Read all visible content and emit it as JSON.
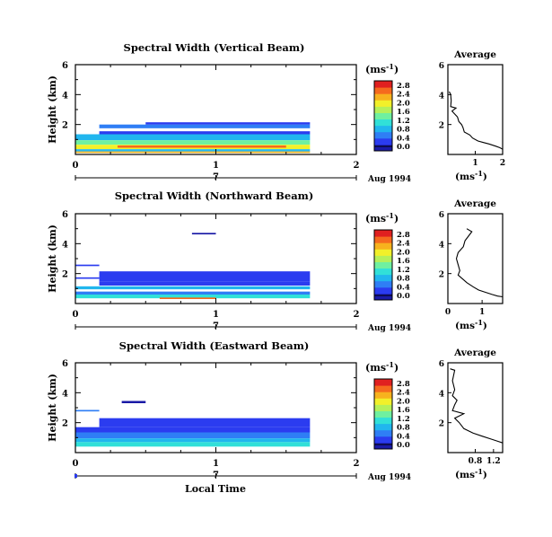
{
  "figure": {
    "xlabel": "Local Time",
    "date_label": "Aug 1994",
    "day_label": "7",
    "ylabel": "Height (km)",
    "cbar_unit": "(ms",
    "cbar_unit_exp": "-1",
    "cbar_unit_close": ")",
    "avg_title": "Average",
    "avg_xlabel": "(ms",
    "avg_xlabel_exp": "-1",
    "avg_xlabel_close": ")"
  },
  "colormap": [
    "#1a1aa6",
    "#2b3cf0",
    "#2f7ef5",
    "#21b6ee",
    "#31e0d8",
    "#6ff0a0",
    "#b5f05a",
    "#f2f02a",
    "#f7b21e",
    "#f56a1e",
    "#e02020"
  ],
  "chart_data": [
    {
      "type": "heatmap",
      "title": "Spectral Width (Vertical Beam)",
      "xlim": [
        0,
        2
      ],
      "xticks": [
        "0",
        "1",
        "2"
      ],
      "ylim": [
        0,
        6
      ],
      "yticks": [
        "2",
        "4",
        "6"
      ],
      "colorbar_ticks": [
        "0.0",
        "0.4",
        "0.8",
        "1.2",
        "1.6",
        "2.0",
        "2.4",
        "2.8"
      ],
      "colorbar_range": [
        0,
        3.0
      ],
      "cells": [
        {
          "x0": 0.17,
          "x1": 1.67,
          "y0": 1.75,
          "y1": 2.0,
          "v": 0.6
        },
        {
          "x0": 0.5,
          "x1": 1.67,
          "y0": 2.0,
          "y1": 2.15,
          "v": 0.5
        },
        {
          "x0": 0.0,
          "x1": 0.17,
          "y0": 1.2,
          "y1": 1.3,
          "v": 0.7
        },
        {
          "x0": 0.17,
          "x1": 1.67,
          "y0": 1.35,
          "y1": 1.55,
          "v": 0.5
        },
        {
          "x0": 0.0,
          "x1": 1.67,
          "y0": 0.95,
          "y1": 1.35,
          "v": 0.9
        },
        {
          "x0": 0.0,
          "x1": 1.67,
          "y0": 0.65,
          "y1": 0.95,
          "v": 1.4
        },
        {
          "x0": 0.0,
          "x1": 1.67,
          "y0": 0.35,
          "y1": 0.65,
          "v": 2.0
        },
        {
          "x0": 0.3,
          "x1": 1.5,
          "y0": 0.45,
          "y1": 0.6,
          "v": 2.6
        },
        {
          "x0": 0.0,
          "x1": 1.67,
          "y0": 0.2,
          "y1": 0.35,
          "v": 1.0
        },
        {
          "x0": 0.0,
          "x1": 1.67,
          "y0": 0.1,
          "y1": 0.2,
          "v": 2.3
        }
      ],
      "average": {
        "xlim": [
          0,
          2
        ],
        "xticks": [
          "1",
          "2"
        ],
        "ylim": [
          0,
          6
        ],
        "yticks": [
          "2",
          "4",
          "6"
        ],
        "profile": [
          [
            0.05,
            4.2
          ],
          [
            0.1,
            4.0
          ],
          [
            0.12,
            3.6
          ],
          [
            0.1,
            3.2
          ],
          [
            0.3,
            3.1
          ],
          [
            0.15,
            2.9
          ],
          [
            0.35,
            2.5
          ],
          [
            0.4,
            2.2
          ],
          [
            0.5,
            2.0
          ],
          [
            0.55,
            1.8
          ],
          [
            0.6,
            1.5
          ],
          [
            0.8,
            1.3
          ],
          [
            0.9,
            1.1
          ],
          [
            1.1,
            0.9
          ],
          [
            1.3,
            0.8
          ],
          [
            1.5,
            0.7
          ],
          [
            1.75,
            0.55
          ],
          [
            1.9,
            0.45
          ],
          [
            2.0,
            0.35
          ]
        ]
      }
    },
    {
      "type": "heatmap",
      "title": "Spectral Width (Northward Beam)",
      "xlim": [
        0,
        2
      ],
      "xticks": [
        "0",
        "1",
        "2"
      ],
      "ylim": [
        0,
        6
      ],
      "yticks": [
        "2",
        "4",
        "6"
      ],
      "colorbar_ticks": [
        "0.0",
        "0.4",
        "0.8",
        "1.2",
        "1.6",
        "2.0",
        "2.4",
        "2.8"
      ],
      "colorbar_range": [
        0,
        3.0
      ],
      "cells": [
        {
          "x0": 0.83,
          "x1": 1.0,
          "y0": 4.62,
          "y1": 4.72,
          "v": 0.2
        },
        {
          "x0": 0.0,
          "x1": 0.17,
          "y0": 2.5,
          "y1": 2.6,
          "v": 0.4
        },
        {
          "x0": 0.0,
          "x1": 0.17,
          "y0": 1.65,
          "y1": 1.75,
          "v": 0.3
        },
        {
          "x0": 0.17,
          "x1": 1.67,
          "y0": 1.95,
          "y1": 2.15,
          "v": 0.3
        },
        {
          "x0": 0.17,
          "x1": 1.67,
          "y0": 1.45,
          "y1": 1.95,
          "v": 0.4
        },
        {
          "x0": 0.17,
          "x1": 1.67,
          "y0": 1.2,
          "y1": 1.45,
          "v": 0.5
        },
        {
          "x0": 0.0,
          "x1": 1.67,
          "y0": 0.95,
          "y1": 1.15,
          "v": 0.9
        },
        {
          "x0": 0.0,
          "x1": 1.67,
          "y0": 0.6,
          "y1": 0.8,
          "v": 0.7
        },
        {
          "x0": 0.0,
          "x1": 1.67,
          "y0": 0.35,
          "y1": 0.6,
          "v": 1.2
        },
        {
          "x0": 0.6,
          "x1": 1.0,
          "y0": 0.3,
          "y1": 0.4,
          "v": 2.6
        }
      ],
      "average": {
        "xlim": [
          0,
          1.6
        ],
        "xticks": [
          "0",
          "1"
        ],
        "ylim": [
          0,
          6
        ],
        "yticks": [
          "2",
          "4",
          "6"
        ],
        "profile": [
          [
            0.55,
            5.0
          ],
          [
            0.7,
            4.8
          ],
          [
            0.6,
            4.5
          ],
          [
            0.5,
            4.2
          ],
          [
            0.45,
            3.8
          ],
          [
            0.3,
            3.4
          ],
          [
            0.25,
            3.0
          ],
          [
            0.3,
            2.6
          ],
          [
            0.35,
            2.2
          ],
          [
            0.3,
            1.9
          ],
          [
            0.45,
            1.6
          ],
          [
            0.55,
            1.4
          ],
          [
            0.75,
            1.1
          ],
          [
            0.9,
            0.9
          ],
          [
            1.1,
            0.75
          ],
          [
            1.3,
            0.6
          ],
          [
            1.45,
            0.5
          ],
          [
            1.6,
            0.45
          ]
        ]
      }
    },
    {
      "type": "heatmap",
      "title": "Spectral Width (Eastward Beam)",
      "xlim": [
        0,
        2
      ],
      "xticks": [
        "0",
        "1",
        "2"
      ],
      "ylim": [
        0,
        6
      ],
      "yticks": [
        "2",
        "4",
        "6"
      ],
      "colorbar_ticks": [
        "0.0",
        "0.4",
        "0.8",
        "1.2",
        "1.6",
        "2.0",
        "2.4",
        "2.8"
      ],
      "colorbar_range": [
        0,
        3.0
      ],
      "cells": [
        {
          "x0": 0.33,
          "x1": 0.5,
          "y0": 3.3,
          "y1": 3.45,
          "v": 0.1
        },
        {
          "x0": 0.0,
          "x1": 0.17,
          "y0": 2.75,
          "y1": 2.85,
          "v": 0.8
        },
        {
          "x0": 0.17,
          "x1": 1.67,
          "y0": 2.1,
          "y1": 2.3,
          "v": 0.3
        },
        {
          "x0": 0.17,
          "x1": 1.67,
          "y0": 1.7,
          "y1": 2.1,
          "v": 0.4
        },
        {
          "x0": 0.0,
          "x1": 1.67,
          "y0": 1.35,
          "y1": 1.7,
          "v": 0.5
        },
        {
          "x0": 0.0,
          "x1": 1.67,
          "y0": 0.95,
          "y1": 1.35,
          "v": 0.7
        },
        {
          "x0": 0.0,
          "x1": 1.67,
          "y0": 0.7,
          "y1": 0.95,
          "v": 0.9
        },
        {
          "x0": 0.0,
          "x1": 1.67,
          "y0": 0.4,
          "y1": 0.7,
          "v": 1.3
        }
      ],
      "average": {
        "xlim": [
          0.2,
          1.4
        ],
        "xticks": [
          "0.8",
          "1.2"
        ],
        "ylim": [
          0,
          6
        ],
        "yticks": [
          "2",
          "4",
          "6"
        ],
        "profile": [
          [
            0.25,
            5.6
          ],
          [
            0.35,
            5.5
          ],
          [
            0.3,
            4.8
          ],
          [
            0.35,
            4.2
          ],
          [
            0.3,
            3.8
          ],
          [
            0.4,
            3.5
          ],
          [
            0.35,
            3.2
          ],
          [
            0.3,
            2.8
          ],
          [
            0.55,
            2.6
          ],
          [
            0.35,
            2.3
          ],
          [
            0.45,
            2.0
          ],
          [
            0.55,
            1.6
          ],
          [
            0.75,
            1.3
          ],
          [
            0.95,
            1.1
          ],
          [
            1.15,
            0.9
          ],
          [
            1.3,
            0.75
          ],
          [
            1.4,
            0.65
          ]
        ]
      }
    }
  ]
}
